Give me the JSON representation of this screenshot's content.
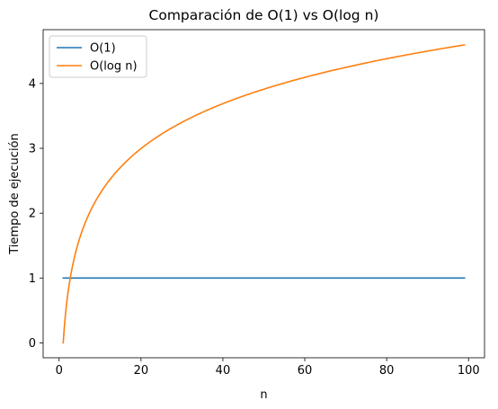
{
  "chart_data": {
    "type": "line",
    "title": "Comparación de O(1) vs O(log n)",
    "xlabel": "n",
    "ylabel": "Tiempo de ejecución",
    "xlim": [
      -3.9,
      103.9
    ],
    "ylim": [
      -0.23,
      4.83
    ],
    "xticks": [
      0,
      20,
      40,
      60,
      80,
      100
    ],
    "yticks": [
      0,
      1,
      2,
      3,
      4
    ],
    "grid": false,
    "legend_position": "upper-left",
    "x_range": [
      1,
      99
    ],
    "series": [
      {
        "name": "O(1)",
        "color": "#1f77b4",
        "expression": "constant 1",
        "x": [
          1,
          99
        ],
        "y": [
          1,
          1
        ]
      },
      {
        "name": "O(log n)",
        "color": "#ff7f0e",
        "expression": "natural log of n",
        "x": [
          1,
          2,
          3,
          5,
          10,
          20,
          30,
          40,
          50,
          60,
          70,
          80,
          90,
          99
        ],
        "y": [
          0,
          0.69,
          1.1,
          1.61,
          2.3,
          3.0,
          3.4,
          3.69,
          3.91,
          4.09,
          4.25,
          4.38,
          4.5,
          4.6
        ]
      }
    ]
  }
}
